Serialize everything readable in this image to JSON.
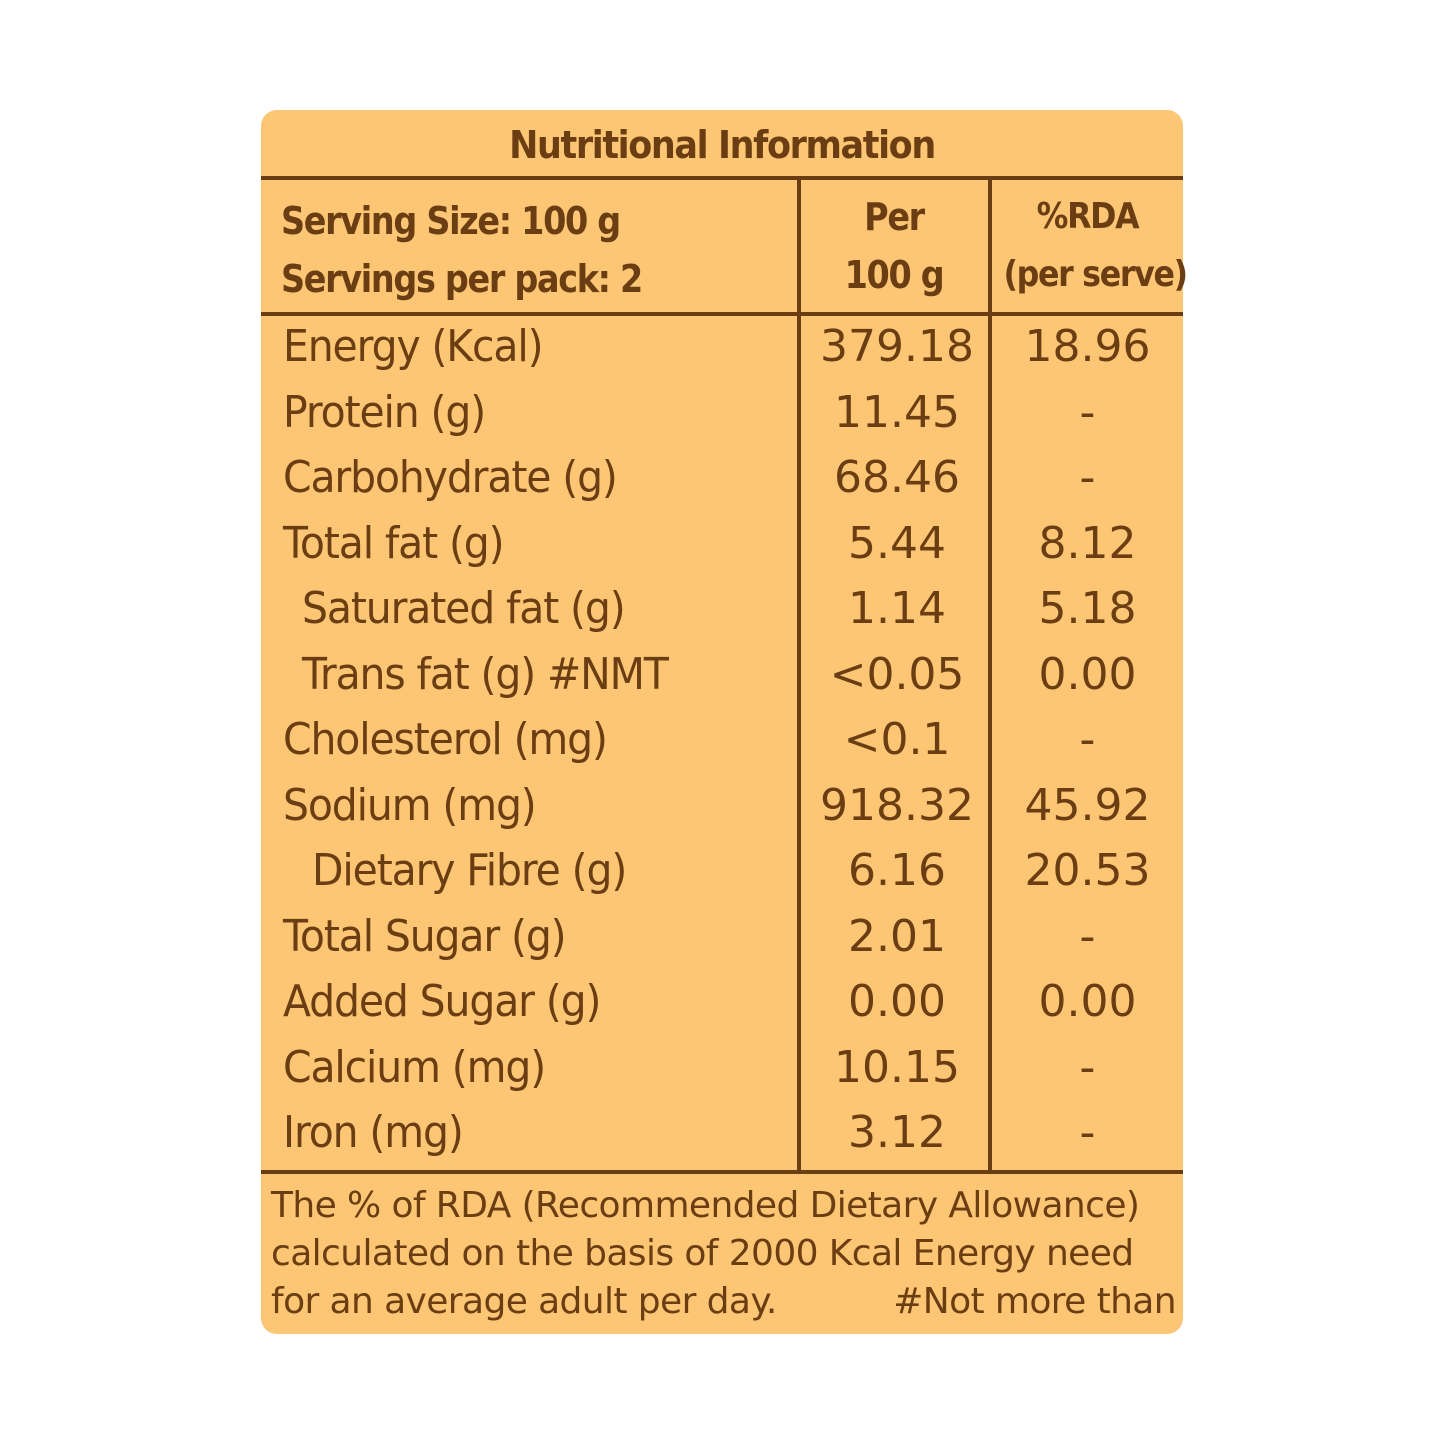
{
  "title": "Nutritional Information",
  "header": {
    "serving_size": "Serving Size: 100 g",
    "servings_per_pack": "Servings per pack: 2",
    "per_line1": "Per",
    "per_line2": "100 g",
    "rda_line1": "%RDA",
    "rda_line2": "(per serve)"
  },
  "rows": [
    {
      "name": "Energy (Kcal)",
      "per": "379.18",
      "rda": "18.96"
    },
    {
      "name": "Protein (g)",
      "per": "11.45",
      "rda": "-"
    },
    {
      "name": "Carbohydrate (g)",
      "per": "68.46",
      "rda": "-"
    },
    {
      "name": "Total fat (g)",
      "per": "5.44",
      "rda": "8.12"
    },
    {
      "name": "Saturated fat (g)",
      "per": "1.14",
      "rda": "5.18"
    },
    {
      "name": "Trans fat (g) #NMT",
      "per": "<0.05",
      "rda": "0.00"
    },
    {
      "name": "Cholesterol (mg)",
      "per": "<0.1",
      "rda": "-"
    },
    {
      "name": "Sodium (mg)",
      "per": "918.32",
      "rda": "45.92"
    },
    {
      "name": "Dietary Fibre (g)",
      "per": "6.16",
      "rda": "20.53"
    },
    {
      "name": "Total Sugar (g)",
      "per": "2.01",
      "rda": "-"
    },
    {
      "name": "Added Sugar (g)",
      "per": "0.00",
      "rda": "0.00"
    },
    {
      "name": "Calcium (mg)",
      "per": "10.15",
      "rda": "-"
    },
    {
      "name": "Iron (mg)",
      "per": "3.12",
      "rda": "-"
    }
  ],
  "footnote": {
    "line1": "The % of RDA (Recommended Dietary Allowance)",
    "line2": "calculated on the basis of 2000 Kcal Energy need",
    "line3": "for an average adult per day.",
    "nmt": "#Not more than"
  },
  "colors": {
    "background": "#fcc674",
    "text": "#6b3d13"
  }
}
